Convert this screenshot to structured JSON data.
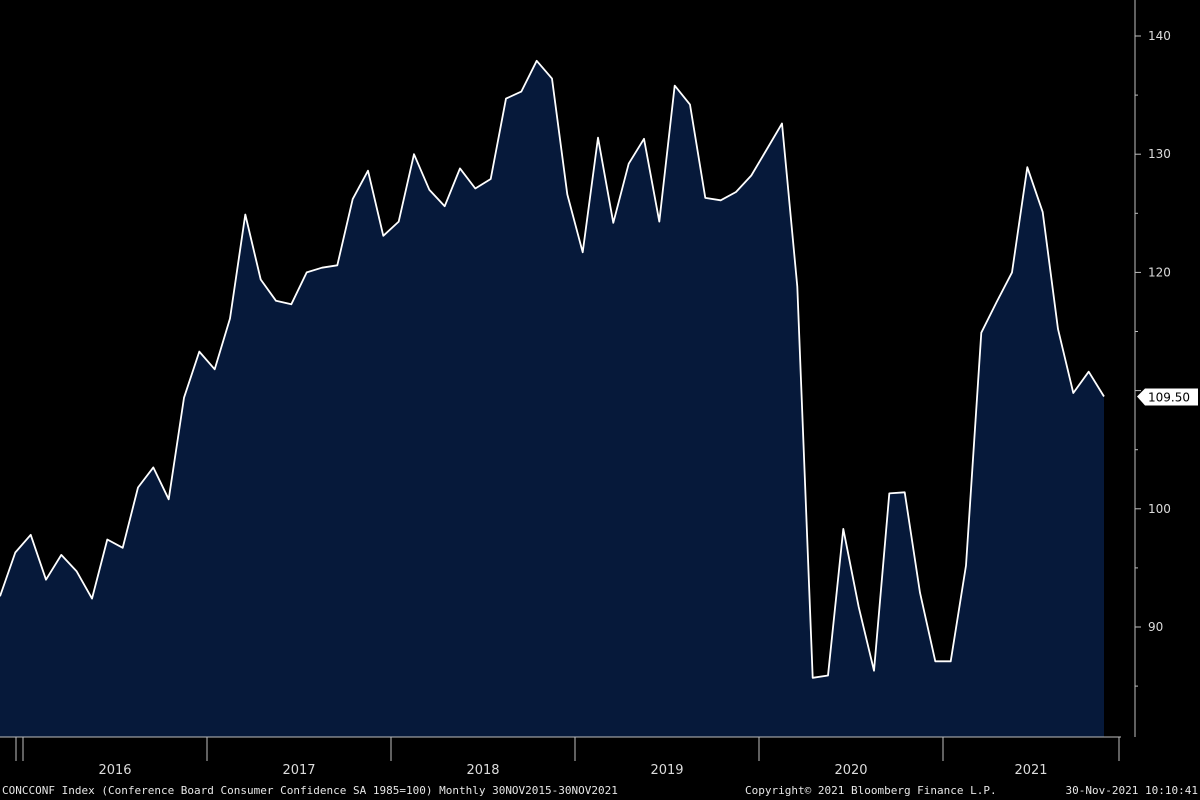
{
  "chart_data": {
    "type": "area",
    "title": "",
    "xlabel": "",
    "ylabel": "",
    "ylim": [
      80,
      142
    ],
    "y_ticks": [
      90,
      100,
      110,
      120,
      130,
      140
    ],
    "y_tick_labels": [
      "90",
      "100",
      "",
      "120",
      "130",
      "140"
    ],
    "x_year_labels": [
      "2016",
      "2017",
      "2018",
      "2019",
      "2020",
      "2021"
    ],
    "last_value_label": "109.50",
    "grid": false,
    "colors": {
      "fill": "#06193a",
      "line": "#ffffff",
      "axis": "#bfbfbf",
      "background": "#000000"
    },
    "series": [
      {
        "x": [
          "2015-11",
          "2015-12",
          "2016-01",
          "2016-02",
          "2016-03",
          "2016-04",
          "2016-05",
          "2016-06",
          "2016-07",
          "2016-08",
          "2016-09",
          "2016-10",
          "2016-11",
          "2016-12",
          "2017-01",
          "2017-02",
          "2017-03",
          "2017-04",
          "2017-05",
          "2017-06",
          "2017-07",
          "2017-08",
          "2017-09",
          "2017-10",
          "2017-11",
          "2017-12",
          "2018-01",
          "2018-02",
          "2018-03",
          "2018-04",
          "2018-05",
          "2018-06",
          "2018-07",
          "2018-08",
          "2018-09",
          "2018-10",
          "2018-11",
          "2018-12",
          "2019-01",
          "2019-02",
          "2019-03",
          "2019-04",
          "2019-05",
          "2019-06",
          "2019-07",
          "2019-08",
          "2019-09",
          "2019-10",
          "2019-11",
          "2019-12",
          "2020-01",
          "2020-02",
          "2020-03",
          "2020-04",
          "2020-05",
          "2020-06",
          "2020-07",
          "2020-08",
          "2020-09",
          "2020-10",
          "2020-11",
          "2020-12",
          "2021-01",
          "2021-02",
          "2021-03",
          "2021-04",
          "2021-05",
          "2021-06",
          "2021-07",
          "2021-08",
          "2021-09",
          "2021-10",
          "2021-11"
        ],
        "values": [
          92.6,
          96.3,
          97.8,
          94.0,
          96.1,
          94.7,
          92.4,
          97.4,
          96.7,
          101.8,
          103.5,
          100.8,
          109.4,
          113.3,
          111.8,
          116.1,
          124.9,
          119.4,
          117.6,
          117.3,
          120.0,
          120.4,
          120.6,
          126.2,
          128.6,
          123.1,
          124.3,
          130.0,
          127.0,
          125.6,
          128.8,
          127.1,
          127.9,
          134.7,
          135.3,
          137.9,
          136.4,
          126.6,
          121.7,
          131.4,
          124.2,
          129.2,
          131.3,
          124.3,
          135.8,
          134.2,
          126.3,
          126.1,
          126.8,
          128.2,
          130.4,
          132.6,
          118.8,
          85.7,
          85.9,
          98.3,
          91.7,
          86.3,
          101.3,
          101.4,
          92.9,
          87.1,
          87.1,
          95.2,
          114.9,
          117.5,
          120.0,
          128.9,
          125.1,
          115.2,
          109.8,
          111.6,
          109.5
        ]
      }
    ]
  },
  "footer": {
    "ticker": "CONCCONF Index (Conference Board Consumer Confidence SA 1985=100)  Monthly 30NOV2015-30NOV2021",
    "copyright": "Copyright© 2021 Bloomberg Finance L.P.",
    "timestamp": "30-Nov-2021 10:10:41"
  }
}
